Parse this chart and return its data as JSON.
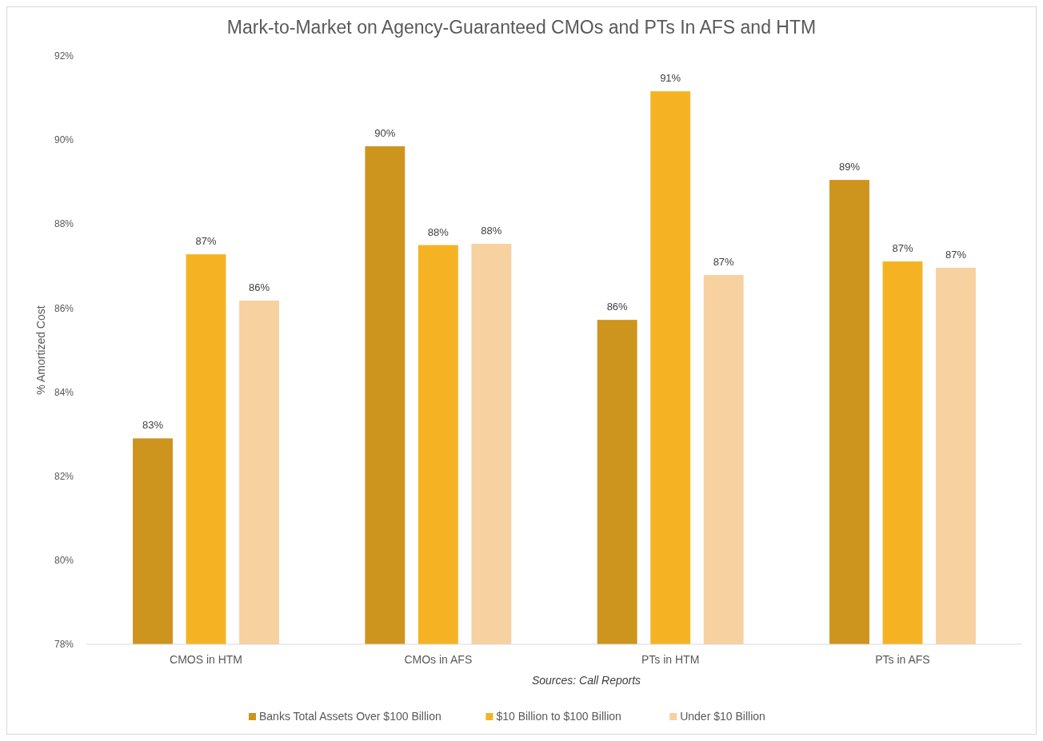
{
  "chart_data": {
    "type": "bar",
    "title": "Mark-to-Market on Agency-Guaranteed CMOs and PTs In AFS and HTM",
    "ylabel": "% Amortized Cost",
    "categories": [
      "CMOS in HTM",
      "CMOs in AFS",
      "PTs in HTM",
      "PTs in AFS"
    ],
    "series": [
      {
        "name": "Banks Total Assets Over $100 Billion",
        "color": "#cd941e",
        "values": [
          82.9,
          89.85,
          85.72,
          89.05
        ],
        "value_labels": [
          "83%",
          "90%",
          "86%",
          "89%"
        ]
      },
      {
        "name": "$10 Billion to $100 Billion",
        "color": "#f5b324",
        "values": [
          87.28,
          87.5,
          91.16,
          87.11
        ],
        "value_labels": [
          "87%",
          "88%",
          "91%",
          "87%"
        ]
      },
      {
        "name": "Under $10 Billion",
        "color": "#f8d1a1",
        "values": [
          86.18,
          87.53,
          86.79,
          86.96
        ],
        "value_labels": [
          "86%",
          "88%",
          "87%",
          "87%"
        ]
      }
    ],
    "ylim": [
      78,
      92
    ],
    "yticks": [
      {
        "value": 78,
        "label": "78%"
      },
      {
        "value": 80,
        "label": "80%"
      },
      {
        "value": 82,
        "label": "82%"
      },
      {
        "value": 84,
        "label": "84%"
      },
      {
        "value": 86,
        "label": "86%"
      },
      {
        "value": 88,
        "label": "88%"
      },
      {
        "value": 90,
        "label": "90%"
      },
      {
        "value": 92,
        "label": "92%"
      }
    ],
    "grid": false,
    "legend": "bottom",
    "annotations": [
      "Sources: Call Reports"
    ]
  }
}
